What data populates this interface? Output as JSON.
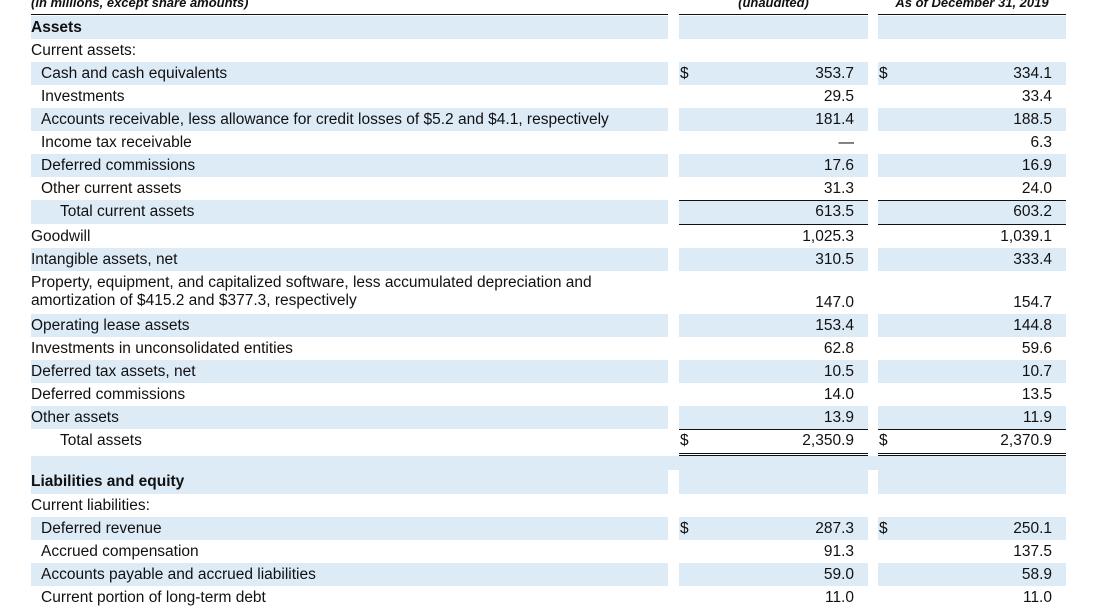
{
  "header": {
    "label": "(in millions, except share amounts)",
    "columns": [
      "(unaudited)",
      "As of December 31, 2019"
    ]
  },
  "rows": [
    {
      "label": "Assets"
    },
    {
      "label": "Current assets:"
    },
    {
      "label": "Cash and cash equivalents",
      "currency": "$",
      "values": [
        "353.7",
        "334.1"
      ]
    },
    {
      "label": "Investments",
      "values": [
        "29.5",
        "33.4"
      ]
    },
    {
      "label": "Accounts receivable, less allowance for credit losses of $5.2 and $4.1, respectively",
      "values": [
        "181.4",
        "188.5"
      ]
    },
    {
      "label": "Income tax receivable",
      "values": [
        "—",
        "6.3"
      ]
    },
    {
      "label": "Deferred commissions",
      "values": [
        "17.6",
        "16.9"
      ]
    },
    {
      "label": "Other current assets",
      "values": [
        "31.3",
        "24.0"
      ]
    },
    {
      "label": "Total current assets",
      "values": [
        "613.5",
        "603.2"
      ]
    },
    {
      "label": "Goodwill",
      "values": [
        "1,025.3",
        "1,039.1"
      ]
    },
    {
      "label": "Intangible assets, net",
      "values": [
        "310.5",
        "333.4"
      ]
    },
    {
      "label": "Property, equipment, and capitalized software, less accumulated depreciation and amortization of $415.2 and $377.3, respectively",
      "values": [
        "147.0",
        "154.7"
      ]
    },
    {
      "label": "Operating lease assets",
      "values": [
        "153.4",
        "144.8"
      ]
    },
    {
      "label": "Investments in unconsolidated entities",
      "values": [
        "62.8",
        "59.6"
      ]
    },
    {
      "label": "Deferred tax assets, net",
      "values": [
        "10.5",
        "10.7"
      ]
    },
    {
      "label": "Deferred commissions",
      "values": [
        "14.0",
        "13.5"
      ]
    },
    {
      "label": "Other assets",
      "values": [
        "13.9",
        "11.9"
      ]
    },
    {
      "label": "Total assets",
      "currency": "$",
      "values": [
        "2,350.9",
        "2,370.9"
      ]
    },
    {
      "label": "Liabilities and equity"
    },
    {
      "label": "Current liabilities:"
    },
    {
      "label": "Deferred revenue",
      "currency": "$",
      "values": [
        "287.3",
        "250.1"
      ]
    },
    {
      "label": "Accrued compensation",
      "values": [
        "91.3",
        "137.5"
      ]
    },
    {
      "label": "Accounts payable and accrued liabilities",
      "values": [
        "59.0",
        "58.9"
      ]
    },
    {
      "label": "Current portion of long-term debt",
      "values": [
        "11.0",
        "11.0"
      ]
    }
  ]
}
